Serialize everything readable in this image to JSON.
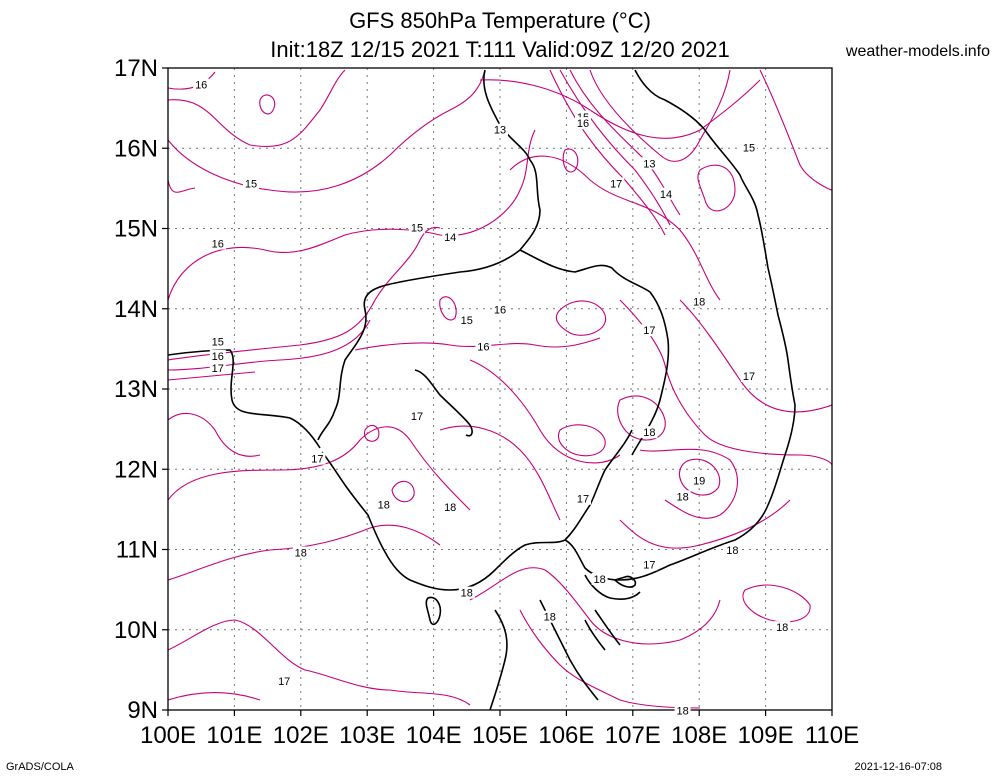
{
  "header": {
    "title_line1": "GFS 850hPa Temperature (°C)",
    "title_line2": "Init:18Z 12/15 2021 T:111 Valid:09Z 12/20 2021",
    "site": "weather-models.info"
  },
  "footer": {
    "left": "GrADS/COLA",
    "right": "2021-12-16-07:08"
  },
  "map": {
    "lat_labels": [
      "17N",
      "16N",
      "15N",
      "14N",
      "13N",
      "12N",
      "11N",
      "10N",
      "9N"
    ],
    "lon_labels": [
      "100E",
      "101E",
      "102E",
      "103E",
      "104E",
      "105E",
      "106E",
      "107E",
      "108E",
      "109E",
      "110E"
    ],
    "contour_color": "#c8007a",
    "coast_color": "#000000",
    "contour_labels": [
      {
        "text": "16",
        "lon": 100.5,
        "lat": 16.78
      },
      {
        "text": "15",
        "lon": 101.25,
        "lat": 15.55
      },
      {
        "text": "16",
        "lon": 100.75,
        "lat": 14.8
      },
      {
        "text": "15",
        "lon": 103.75,
        "lat": 15.0
      },
      {
        "text": "14",
        "lon": 104.25,
        "lat": 14.88
      },
      {
        "text": "13",
        "lon": 105.0,
        "lat": 16.22
      },
      {
        "text": "15",
        "lon": 106.25,
        "lat": 16.38
      },
      {
        "text": "16",
        "lon": 106.25,
        "lat": 16.3
      },
      {
        "text": "13",
        "lon": 107.25,
        "lat": 15.8
      },
      {
        "text": "17",
        "lon": 106.75,
        "lat": 15.55
      },
      {
        "text": "14",
        "lon": 107.5,
        "lat": 15.42
      },
      {
        "text": "15",
        "lon": 108.75,
        "lat": 16.0
      },
      {
        "text": "18",
        "lon": 108.0,
        "lat": 14.08
      },
      {
        "text": "17",
        "lon": 107.25,
        "lat": 13.72
      },
      {
        "text": "16",
        "lon": 105.0,
        "lat": 13.98
      },
      {
        "text": "15",
        "lon": 104.5,
        "lat": 13.85
      },
      {
        "text": "16",
        "lon": 104.75,
        "lat": 13.52
      },
      {
        "text": "15",
        "lon": 100.75,
        "lat": 13.58
      },
      {
        "text": "16",
        "lon": 100.75,
        "lat": 13.4
      },
      {
        "text": "17",
        "lon": 100.75,
        "lat": 13.25
      },
      {
        "text": "17",
        "lon": 108.75,
        "lat": 13.15
      },
      {
        "text": "17",
        "lon": 103.75,
        "lat": 12.65
      },
      {
        "text": "18",
        "lon": 107.25,
        "lat": 12.45
      },
      {
        "text": "17",
        "lon": 102.25,
        "lat": 12.12
      },
      {
        "text": "19",
        "lon": 108.0,
        "lat": 11.85
      },
      {
        "text": "18",
        "lon": 107.75,
        "lat": 11.65
      },
      {
        "text": "17",
        "lon": 106.25,
        "lat": 11.62
      },
      {
        "text": "18",
        "lon": 103.25,
        "lat": 11.55
      },
      {
        "text": "18",
        "lon": 104.25,
        "lat": 11.52
      },
      {
        "text": "18",
        "lon": 108.5,
        "lat": 10.98
      },
      {
        "text": "18",
        "lon": 102.0,
        "lat": 10.95
      },
      {
        "text": "17",
        "lon": 107.25,
        "lat": 10.8
      },
      {
        "text": "18",
        "lon": 106.5,
        "lat": 10.62
      },
      {
        "text": "18",
        "lon": 104.5,
        "lat": 10.45
      },
      {
        "text": "18",
        "lon": 105.75,
        "lat": 10.15
      },
      {
        "text": "18",
        "lon": 109.25,
        "lat": 10.02
      },
      {
        "text": "17",
        "lon": 101.75,
        "lat": 9.35
      },
      {
        "text": "18",
        "lon": 107.75,
        "lat": 8.98
      }
    ]
  }
}
